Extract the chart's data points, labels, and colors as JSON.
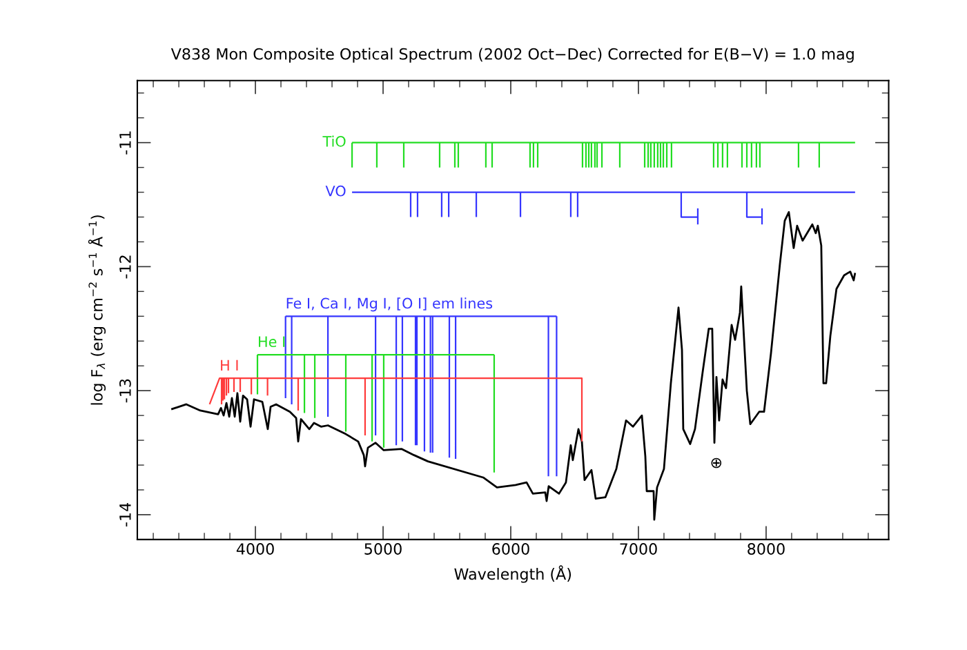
{
  "chart_data": {
    "type": "line",
    "title": "V838 Mon Composite Optical Spectrum (2002 Oct−Dec) Corrected for E(B−V) = 1.0 mag",
    "xlabel": "Wavelength (Å)",
    "ylabel": "log F$_{λ}$ (erg cm$^{−2}$ s$^{−1}$ Å$^{−1}$)",
    "xlim": [
      3075,
      8960
    ],
    "ylim": [
      -14.2,
      -10.5
    ],
    "xticks": [
      {
        "value": 3200,
        "label": null
      },
      {
        "value": 3400,
        "label": null
      },
      {
        "value": 3600,
        "label": null
      },
      {
        "value": 3800,
        "label": null
      },
      4000,
      {
        "value": 4200,
        "label": null
      },
      {
        "value": 4400,
        "label": null
      },
      {
        "value": 4600,
        "label": null
      },
      {
        "value": 4800,
        "label": null
      },
      5000,
      {
        "value": 5200,
        "label": null
      },
      {
        "value": 5400,
        "label": null
      },
      {
        "value": 5600,
        "label": null
      },
      {
        "value": 5800,
        "label": null
      },
      6000,
      {
        "value": 6200,
        "label": null
      },
      {
        "value": 6400,
        "label": null
      },
      {
        "value": 6600,
        "label": null
      },
      {
        "value": 6800,
        "label": null
      },
      7000,
      {
        "value": 7200,
        "label": null
      },
      {
        "value": 7400,
        "label": null
      },
      {
        "value": 7600,
        "label": null
      },
      {
        "value": 7800,
        "label": null
      },
      8000,
      {
        "value": 8200,
        "label": null
      },
      {
        "value": 8400,
        "label": null
      },
      {
        "value": 8600,
        "label": null
      },
      {
        "value": 8800,
        "label": null
      }
    ],
    "yticks": [
      {
        "value": -10.6,
        "label": null
      },
      {
        "value": -10.8,
        "label": null
      },
      -11,
      {
        "value": -11.2,
        "label": null
      },
      {
        "value": -11.4,
        "label": null
      },
      {
        "value": -11.6,
        "label": null
      },
      {
        "value": -11.8,
        "label": null
      },
      -12,
      {
        "value": -12.2,
        "label": null
      },
      {
        "value": -12.4,
        "label": null
      },
      {
        "value": -12.6,
        "label": null
      },
      {
        "value": -12.8,
        "label": null
      },
      -13,
      {
        "value": -13.2,
        "label": null
      },
      {
        "value": -13.4,
        "label": null
      },
      {
        "value": -13.6,
        "label": null
      },
      {
        "value": -13.8,
        "label": null
      },
      -14
    ],
    "grid": false,
    "marker": "none",
    "line_style": "solid",
    "annotations": [
      {
        "text": "⊕",
        "x": 7595,
        "y": -13.42
      }
    ],
    "series": [
      {
        "color": "#000000",
        "x": [
          3341,
          3459,
          3568,
          3708,
          3730,
          3751,
          3773,
          3795,
          3816,
          3838,
          3859,
          3881,
          3903,
          3935,
          3962,
          3989,
          4054,
          4097,
          4119,
          4162,
          4270,
          4319,
          4335,
          4357,
          4422,
          4459,
          4514,
          4568,
          4708,
          4805,
          4849,
          4859,
          4881,
          4941,
          5005,
          5146,
          5243,
          5351,
          5784,
          5892,
          6038,
          6124,
          6173,
          6270,
          6281,
          6297,
          6378,
          6432,
          6470,
          6486,
          6530,
          6557,
          6578,
          6632,
          6665,
          6741,
          6827,
          6903,
          6957,
          7027,
          7054,
          7065,
          7119,
          7124,
          7146,
          7200,
          7254,
          7314,
          7341,
          7351,
          7405,
          7443,
          7503,
          7551,
          7578,
          7595,
          7611,
          7632,
          7659,
          7686,
          7730,
          7757,
          7795,
          7805,
          7849,
          7876,
          7946,
          7984,
          8038,
          8108,
          8146,
          8178,
          8216,
          8243,
          8286,
          8362,
          8389,
          8405,
          8432,
          8449,
          8470,
          8503,
          8551,
          8611,
          8659,
          8686,
          8697
        ],
        "values": [
          -13.15,
          -13.11,
          -13.16,
          -13.19,
          -13.14,
          -13.2,
          -13.1,
          -13.21,
          -13.06,
          -13.21,
          -13.02,
          -13.25,
          -13.04,
          -13.07,
          -13.29,
          -13.07,
          -13.09,
          -13.31,
          -13.13,
          -13.11,
          -13.17,
          -13.22,
          -13.41,
          -13.23,
          -13.31,
          -13.26,
          -13.29,
          -13.28,
          -13.35,
          -13.41,
          -13.52,
          -13.61,
          -13.46,
          -13.42,
          -13.48,
          -13.47,
          -13.52,
          -13.57,
          -13.7,
          -13.78,
          -13.76,
          -13.74,
          -13.83,
          -13.82,
          -13.89,
          -13.77,
          -13.83,
          -13.74,
          -13.44,
          -13.56,
          -13.31,
          -13.41,
          -13.72,
          -13.64,
          -13.87,
          -13.86,
          -13.63,
          -13.24,
          -13.29,
          -13.2,
          -13.53,
          -13.81,
          -13.81,
          -14.04,
          -13.78,
          -13.63,
          -12.94,
          -12.33,
          -12.67,
          -13.31,
          -13.43,
          -13.31,
          -12.85,
          -12.5,
          -12.5,
          -13.42,
          -12.89,
          -13.24,
          -12.91,
          -12.98,
          -12.47,
          -12.59,
          -12.37,
          -12.16,
          -13.0,
          -13.27,
          -13.17,
          -13.17,
          -12.7,
          -11.98,
          -11.63,
          -11.56,
          -11.85,
          -11.67,
          -11.79,
          -11.66,
          -11.73,
          -11.67,
          -11.83,
          -12.94,
          -12.94,
          -12.56,
          -12.18,
          -12.07,
          -12.04,
          -12.11,
          -12.05
        ]
      },
      {
        "name": "TiO",
        "color": "#22dd22",
        "x": [
          4757,
          8697,
          null,
          4757,
          4757,
          null,
          4951,
          4951,
          null,
          5162,
          5162,
          null,
          5443,
          5443,
          null,
          5562,
          5562,
          null,
          5589,
          5589,
          null,
          5805,
          5805,
          null,
          5854,
          5854,
          null,
          6151,
          6151,
          null,
          6178,
          6178,
          null,
          6211,
          6211,
          null,
          6562,
          6562,
          null,
          6589,
          6589,
          null,
          6611,
          6611,
          null,
          6632,
          6632,
          null,
          6659,
          6659,
          null,
          6676,
          6676,
          null,
          6714,
          6714,
          null,
          6854,
          6854,
          null,
          7049,
          7049,
          null,
          7076,
          7076,
          null,
          7097,
          7097,
          null,
          7124,
          7124,
          null,
          7151,
          7151,
          null,
          7173,
          7173,
          null,
          7195,
          7195,
          null,
          7222,
          7222,
          null,
          7259,
          7259,
          null,
          7589,
          7589,
          null,
          7622,
          7622,
          null,
          7659,
          7659,
          null,
          7697,
          7697,
          null,
          7811,
          7811,
          null,
          7849,
          7849,
          null,
          7886,
          7886,
          null,
          7924,
          7924,
          null,
          7951,
          7951,
          null,
          8254,
          8254,
          null,
          8416,
          8416
        ],
        "values": [
          -11,
          -11,
          null,
          -11,
          -11.2,
          null,
          -11,
          -11.2,
          null,
          -11,
          -11.2,
          null,
          -11,
          -11.2,
          null,
          -11,
          -11.2,
          null,
          -11,
          -11.2,
          null,
          -11,
          -11.2,
          null,
          -11,
          -11.2,
          null,
          -11,
          -11.2,
          null,
          -11,
          -11.2,
          null,
          -11,
          -11.2,
          null,
          -11,
          -11.2,
          null,
          -11,
          -11.2,
          null,
          -11,
          -11.2,
          null,
          -11,
          -11.2,
          null,
          -11,
          -11.2,
          null,
          -11,
          -11.2,
          null,
          -11,
          -11.2,
          null,
          -11,
          -11.2,
          null,
          -11,
          -11.2,
          null,
          -11,
          -11.2,
          null,
          -11,
          -11.2,
          null,
          -11,
          -11.2,
          null,
          -11,
          -11.2,
          null,
          -11,
          -11.2,
          null,
          -11,
          -11.2,
          null,
          -11,
          -11.2,
          null,
          -11,
          -11.2,
          null,
          -11,
          -11.2,
          null,
          -11,
          -11.2,
          null,
          -11,
          -11.2,
          null,
          -11,
          -11.2,
          null,
          -11,
          -11.2,
          null,
          -11,
          -11.2,
          null,
          -11,
          -11.2,
          null,
          -11,
          -11.2,
          null,
          -11,
          -11.2,
          null,
          -11,
          -11.2,
          null,
          -11,
          -11.2
        ]
      },
      {
        "name": "VO",
        "color": "#3535ff",
        "x": [
          4757,
          8697,
          null,
          5216,
          5216,
          null,
          5270,
          5270,
          null,
          5459,
          5459,
          null,
          5514,
          5514,
          null,
          5730,
          5730,
          null,
          6076,
          6076,
          null,
          6470,
          6470,
          null,
          6524,
          6524,
          null,
          7335,
          7335,
          7465,
          null,
          7465,
          7465,
          null,
          7849,
          7849,
          7968,
          null,
          7968,
          7968
        ],
        "values": [
          -11.4,
          -11.4,
          null,
          -11.4,
          -11.6,
          null,
          -11.4,
          -11.6,
          null,
          -11.4,
          -11.6,
          null,
          -11.4,
          -11.6,
          null,
          -11.4,
          -11.6,
          null,
          -11.4,
          -11.6,
          null,
          -11.4,
          -11.6,
          null,
          -11.4,
          -11.6,
          null,
          -11.4,
          -11.6,
          -11.6,
          null,
          -11.53,
          -11.66,
          null,
          -11.4,
          -11.6,
          -11.6,
          null,
          -11.53,
          -11.66
        ]
      },
      {
        "name": "Fe I, Ca I, Mg I, [O I] em lines",
        "color": "#3535ff",
        "x": [
          4236,
          6359,
          null,
          4236,
          4236,
          null,
          4284,
          4284,
          null,
          4568,
          4568,
          null,
          4941,
          4941,
          null,
          5103,
          5103,
          null,
          5151,
          5151,
          null,
          5254,
          5254,
          null,
          5265,
          5265,
          null,
          5324,
          5324,
          null,
          5371,
          5371,
          null,
          5388,
          5388,
          null,
          5519,
          5519,
          null,
          5568,
          5568,
          null,
          6295,
          6295,
          null,
          6359,
          6359
        ],
        "values": [
          -12.4,
          -12.4,
          null,
          -12.4,
          -13.06,
          null,
          -12.4,
          -13.11,
          null,
          -12.4,
          -13.21,
          null,
          -12.4,
          -13.36,
          null,
          -12.4,
          -13.44,
          null,
          -12.4,
          -13.41,
          null,
          -12.4,
          -13.44,
          null,
          -12.4,
          -13.44,
          null,
          -12.4,
          -13.49,
          null,
          -12.4,
          -13.5,
          null,
          -12.4,
          -13.5,
          null,
          -12.4,
          -13.54,
          null,
          -12.4,
          -13.55,
          null,
          -12.4,
          -13.69,
          null,
          -12.4,
          -13.69
        ]
      },
      {
        "name": "He I",
        "color": "#22dd22",
        "x": [
          4016,
          5870,
          null,
          4016,
          4016,
          null,
          4384,
          4384,
          null,
          4465,
          4465,
          null,
          4708,
          4708,
          null,
          4914,
          4914,
          null,
          5005,
          5005,
          null,
          5870,
          5870
        ],
        "values": [
          -12.71,
          -12.71,
          null,
          -12.71,
          -13.03,
          null,
          -12.71,
          -13.18,
          null,
          -12.71,
          -13.22,
          null,
          -12.71,
          -13.33,
          null,
          -12.71,
          -13.41,
          null,
          -12.71,
          -13.46,
          null,
          -12.71,
          -13.66
        ]
      },
      {
        "name": "H I",
        "color": "#ff3b3b",
        "x": [
          3641,
          3719,
          6557,
          6557,
          null,
          3735,
          3735,
          null,
          3746,
          3746,
          null,
          3757,
          3757,
          null,
          3773,
          3773,
          null,
          3789,
          3789,
          null,
          3832,
          3832,
          null,
          3881,
          3881,
          null,
          3968,
          3968,
          null,
          4095,
          4095,
          null,
          4335,
          4335,
          null,
          4859,
          4859
        ],
        "values": [
          -13.11,
          -12.9,
          -12.9,
          -13.41,
          null,
          -12.9,
          -13.11,
          null,
          -12.9,
          -13.08,
          null,
          -12.9,
          -13.07,
          null,
          -12.9,
          -13.04,
          null,
          -12.9,
          -13.02,
          null,
          -12.9,
          -13.01,
          null,
          -12.9,
          -13.01,
          null,
          -12.9,
          -13.03,
          null,
          -12.9,
          -13.04,
          null,
          -12.9,
          -13.16,
          null,
          -12.9,
          -13.36
        ]
      }
    ]
  }
}
